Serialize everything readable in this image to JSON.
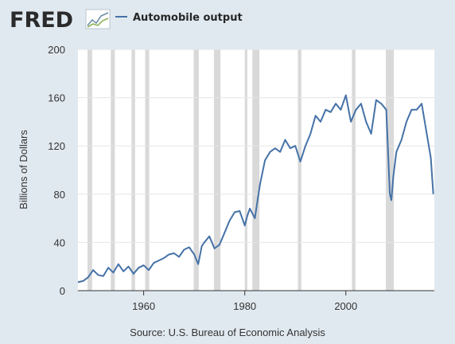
{
  "header": {
    "logo_text": "FRED",
    "logo_icon": "line-graph-icon"
  },
  "footer": {
    "source": "Source: U.S. Bureau of Economic Analysis"
  },
  "colors": {
    "background": "#e1e9f0",
    "plot_bg": "#ffffff",
    "series": "#4572a7",
    "recession": "#d9d9d9",
    "grid": "#e6e6e6",
    "logo_dark": "#2b2b2b"
  },
  "chart_data": {
    "type": "line",
    "title": "",
    "xlabel": "",
    "ylabel": "Billions of Dollars",
    "xlim": [
      1947,
      2017.5
    ],
    "ylim": [
      0,
      200
    ],
    "x_ticks": [
      1960,
      1980,
      2000
    ],
    "y_ticks": [
      0,
      40,
      80,
      120,
      160,
      200
    ],
    "grid": "horizontal",
    "legend": "top-left",
    "recessions": [
      [
        1948.9,
        1949.8
      ],
      [
        1953.5,
        1954.3
      ],
      [
        1957.6,
        1958.3
      ],
      [
        1960.3,
        1961.1
      ],
      [
        1969.9,
        1970.9
      ],
      [
        1973.9,
        1975.2
      ],
      [
        1980.0,
        1980.5
      ],
      [
        1981.5,
        1982.9
      ],
      [
        1990.5,
        1991.2
      ],
      [
        2001.2,
        2001.9
      ],
      [
        2007.9,
        2009.5
      ]
    ],
    "series": [
      {
        "name": "Automobile output",
        "x": [
          1947.0,
          1948.0,
          1949.0,
          1950.0,
          1951.0,
          1952.0,
          1953.0,
          1954.0,
          1955.0,
          1956.0,
          1957.0,
          1958.0,
          1959.0,
          1960.0,
          1961.0,
          1962.0,
          1963.0,
          1964.0,
          1965.0,
          1966.0,
          1967.0,
          1968.0,
          1969.0,
          1970.0,
          1970.8,
          1971.5,
          1972.0,
          1973.0,
          1974.0,
          1975.0,
          1976.0,
          1977.0,
          1978.0,
          1979.0,
          1980.0,
          1980.5,
          1981.0,
          1982.0,
          1983.0,
          1984.0,
          1985.0,
          1986.0,
          1987.0,
          1988.0,
          1989.0,
          1990.0,
          1991.0,
          1992.0,
          1993.0,
          1994.0,
          1995.0,
          1996.0,
          1997.0,
          1998.0,
          1999.0,
          2000.0,
          2001.0,
          2002.0,
          2003.0,
          2004.0,
          2005.0,
          2006.0,
          2007.0,
          2008.0,
          2008.7,
          2009.0,
          2009.4,
          2010.0,
          2011.0,
          2012.0,
          2013.0,
          2014.0,
          2015.0,
          2016.0,
          2016.8,
          2017.3
        ],
        "values": [
          7,
          8,
          11,
          17,
          13,
          12,
          19,
          15,
          22,
          16,
          20,
          14,
          19,
          21,
          17,
          23,
          25,
          27,
          30,
          31,
          28,
          34,
          36,
          30,
          22,
          37,
          40,
          45,
          35,
          38,
          48,
          58,
          65,
          66,
          54,
          62,
          68,
          60,
          88,
          108,
          115,
          118,
          115,
          125,
          118,
          120,
          107,
          120,
          130,
          145,
          140,
          150,
          148,
          155,
          150,
          162,
          140,
          150,
          155,
          140,
          130,
          158,
          155,
          150,
          80,
          75,
          95,
          115,
          125,
          140,
          150,
          150,
          155,
          130,
          110,
          80
        ]
      }
    ]
  }
}
